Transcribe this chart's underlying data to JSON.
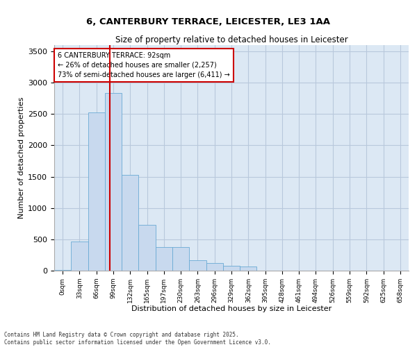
{
  "title_line1": "6, CANTERBURY TERRACE, LEICESTER, LE3 1AA",
  "title_line2": "Size of property relative to detached houses in Leicester",
  "xlabel": "Distribution of detached houses by size in Leicester",
  "ylabel": "Number of detached properties",
  "bar_color": "#c8d9ee",
  "bar_edge_color": "#6aaad4",
  "grid_color": "#b8c8dc",
  "background_color": "#dce8f4",
  "vline_color": "#cc0000",
  "annotation_box_text": "6 CANTERBURY TERRACE: 92sqm\n← 26% of detached houses are smaller (2,257)\n73% of semi-detached houses are larger (6,411) →",
  "categories": [
    "0sqm",
    "33sqm",
    "66sqm",
    "99sqm",
    "132sqm",
    "165sqm",
    "197sqm",
    "230sqm",
    "263sqm",
    "296sqm",
    "329sqm",
    "362sqm",
    "395sqm",
    "428sqm",
    "461sqm",
    "494sqm",
    "526sqm",
    "559sqm",
    "592sqm",
    "625sqm",
    "658sqm"
  ],
  "values": [
    10,
    460,
    2530,
    2840,
    1530,
    730,
    380,
    380,
    170,
    120,
    80,
    70,
    0,
    0,
    0,
    0,
    0,
    0,
    0,
    0,
    0
  ],
  "ylim": [
    0,
    3600
  ],
  "yticks": [
    0,
    500,
    1000,
    1500,
    2000,
    2500,
    3000,
    3500
  ],
  "vline_pos": 2.79,
  "footer_line1": "Contains HM Land Registry data © Crown copyright and database right 2025.",
  "footer_line2": "Contains public sector information licensed under the Open Government Licence v3.0."
}
